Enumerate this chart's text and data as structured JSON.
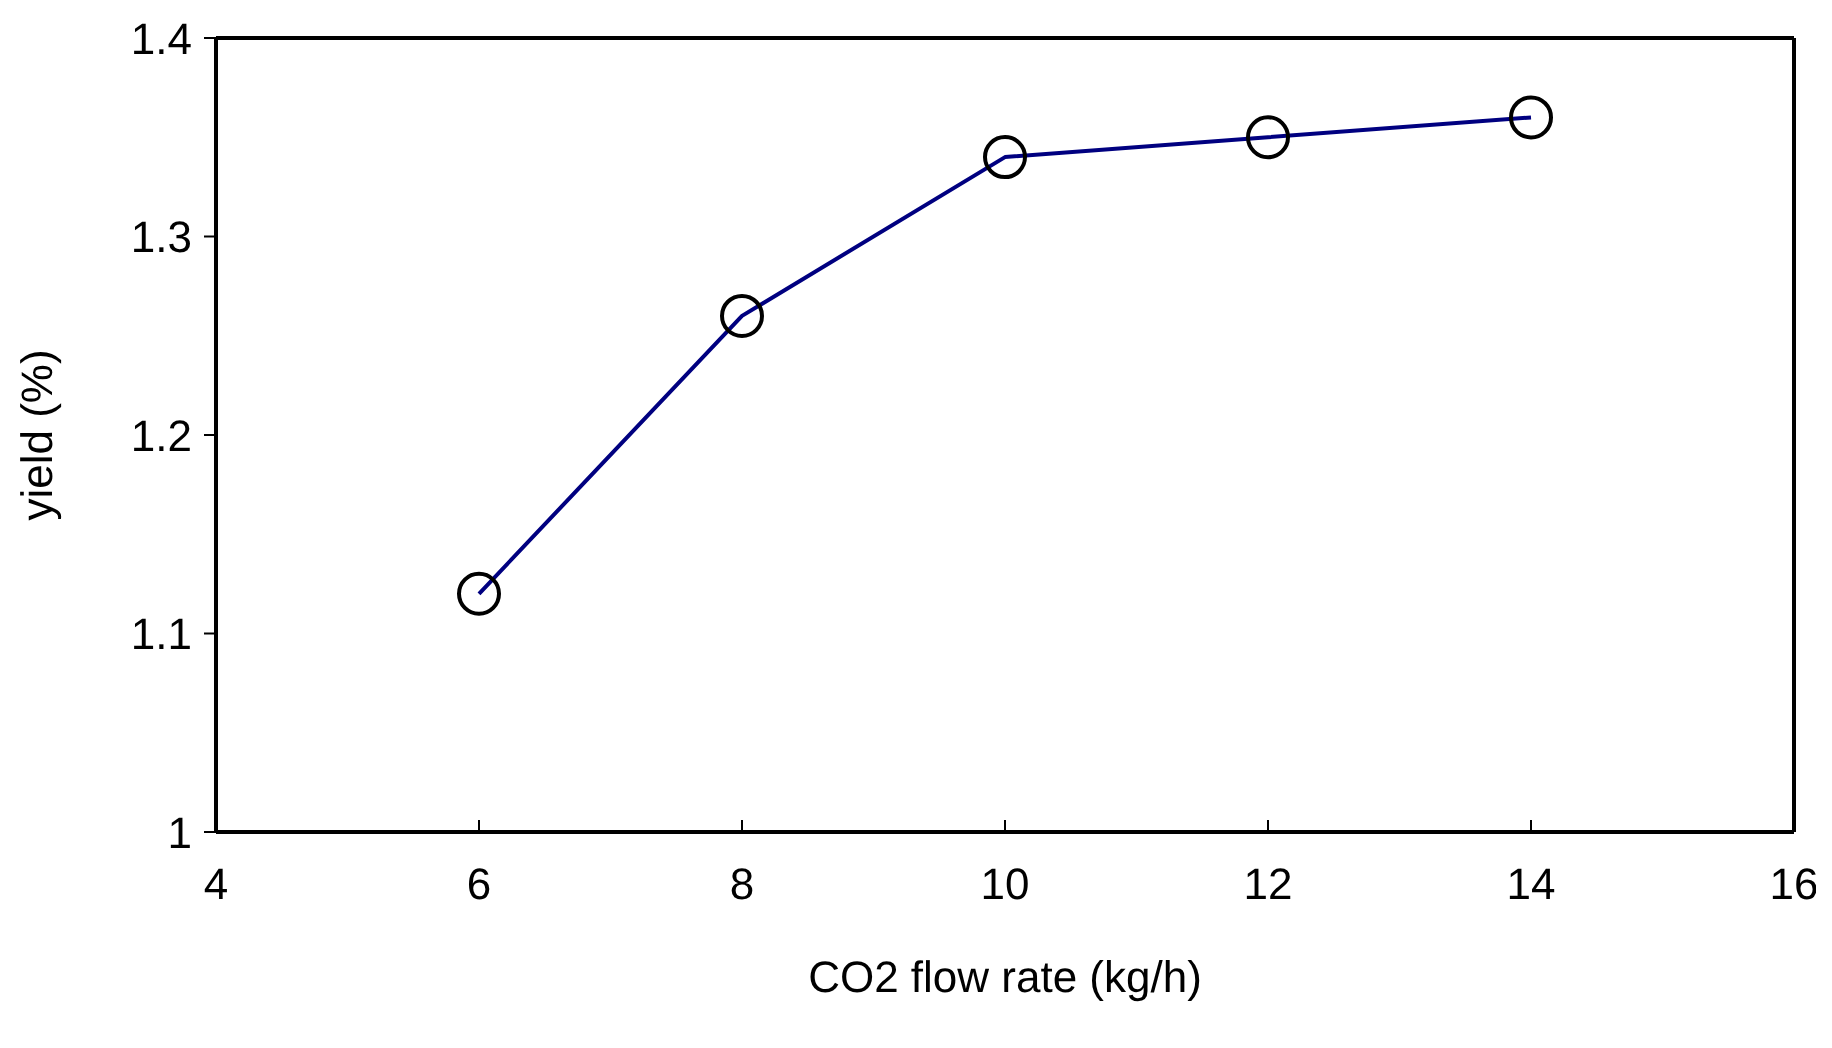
{
  "chart_data": {
    "type": "line",
    "xlabel": "CO2 flow rate (kg/h)",
    "ylabel": "yield (%)",
    "x": [
      6,
      8,
      10,
      12,
      14
    ],
    "series": [
      {
        "color": "#000080",
        "values": [
          1.12,
          1.26,
          1.34,
          1.35,
          1.36
        ]
      }
    ],
    "xlim": [
      4,
      16
    ],
    "xticks": [
      4,
      6,
      8,
      10,
      12,
      14,
      16
    ],
    "ylim": [
      1,
      1.4
    ],
    "yticks": [
      1,
      1.1,
      1.2,
      1.3,
      1.4
    ],
    "grid": false,
    "legend": false,
    "marker": "circle",
    "line_style": "solid"
  }
}
